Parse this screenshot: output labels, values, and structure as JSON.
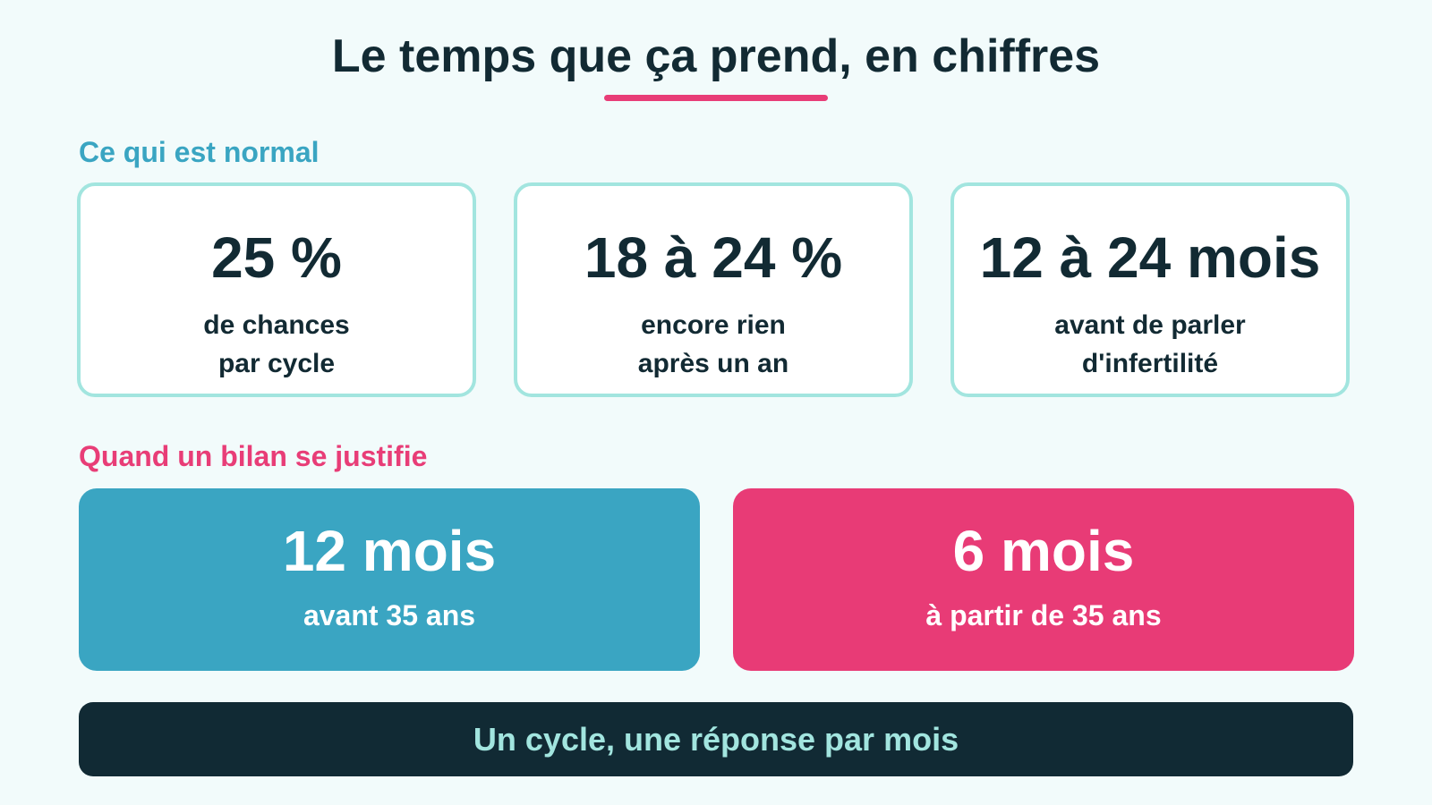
{
  "title": "Le temps que ça prend, en chiffres",
  "colors": {
    "background": "#f2fbfb",
    "dark": "#122a33",
    "teal": "#3aa5c2",
    "pink": "#e83d77",
    "mint": "#a2e5df"
  },
  "normal": {
    "heading": "Ce qui est normal",
    "cards": [
      {
        "value": "25 %",
        "line1": "de chances",
        "line2": "par cycle"
      },
      {
        "value": "18 à 24 %",
        "line1": "encore rien",
        "line2": "après un an"
      },
      {
        "value": "12 à 24 mois",
        "line1": "avant de parler",
        "line2": "d'infertilité"
      }
    ]
  },
  "bilan": {
    "heading": "Quand un bilan se justifie",
    "cards": [
      {
        "value": "12 mois",
        "desc": "avant 35 ans"
      },
      {
        "value": "6 mois",
        "desc": "à partir de 35 ans"
      }
    ]
  },
  "footer": {
    "text": "Un cycle, une réponse par mois"
  }
}
